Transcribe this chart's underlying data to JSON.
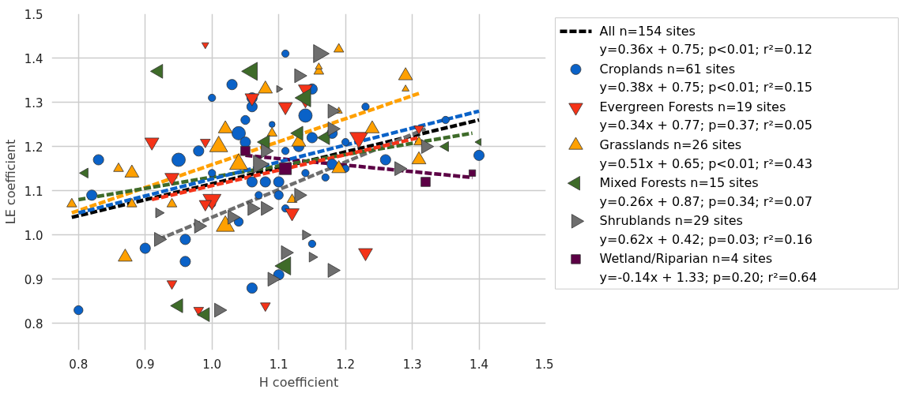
{
  "chart_data": {
    "type": "bubble",
    "xlabel": "H coefficient",
    "ylabel": "LE coefficient",
    "xlim": [
      0.76,
      1.5
    ],
    "ylim": [
      0.74,
      1.5
    ],
    "xticks": [
      0.8,
      0.9,
      {
        "value": 1.0,
        "label": "1.0"
      },
      1.1,
      1.2,
      1.3,
      1.4,
      1.5
    ],
    "yticks": [
      0.8,
      0.9,
      {
        "value": 1.0,
        "label": "1.0"
      },
      1.1,
      1.2,
      1.3,
      1.4,
      1.5
    ],
    "grid": true,
    "legend": "right",
    "series": [
      {
        "type": "line",
        "name": "All n=154 sites\ny=0.36x + 0.75; p<0.01; r²=0.12",
        "color": "#000000",
        "line_style": "dashed",
        "x": [
          0.79,
          1.4
        ],
        "values": [
          1.04,
          1.26
        ]
      },
      {
        "type": "line",
        "color": "#ffa000",
        "line_style": "dashed",
        "x": [
          0.79,
          1.31
        ],
        "values": [
          1.05,
          1.32
        ]
      },
      {
        "type": "line",
        "color": "#6e6e6e",
        "line_style": "dashed",
        "x": [
          0.92,
          1.32
        ],
        "values": [
          0.99,
          1.24
        ]
      },
      {
        "type": "line",
        "color": "#5c0045",
        "line_style": "dashed",
        "x": [
          1.05,
          1.39
        ],
        "values": [
          1.18,
          1.13
        ]
      },
      {
        "type": "line",
        "color": "#3e6b29",
        "line_style": "dashed",
        "x": [
          0.8,
          1.39
        ],
        "values": [
          1.08,
          1.23
        ]
      },
      {
        "type": "line",
        "color": "#f53318",
        "line_style": "dashed",
        "x": [
          0.91,
          1.31
        ],
        "values": [
          1.08,
          1.22
        ]
      },
      {
        "type": "line",
        "color": "#0a62c8",
        "line_style": "dashed",
        "x": [
          0.8,
          1.4
        ],
        "values": [
          1.05,
          1.28
        ]
      },
      {
        "name": "Croplands n=61 sites\ny=0.38x + 0.75; p<0.01; r²=0.15",
        "color": "#0a62c8",
        "marker": "circle",
        "x": [
          0.8,
          0.83,
          0.82,
          0.9,
          0.96,
          0.96,
          0.95,
          0.98,
          1.0,
          1.0,
          1.0,
          1.03,
          1.06,
          1.06,
          1.05,
          1.09,
          1.04,
          1.05,
          1.11,
          1.15,
          1.14,
          1.18,
          1.15,
          1.13,
          1.11,
          1.2,
          1.23,
          1.26,
          1.35,
          1.4,
          1.06,
          1.08,
          1.1,
          1.07,
          1.1,
          1.11,
          1.04,
          1.15,
          1.1,
          1.06,
          1.17,
          1.14,
          1.18,
          1.2
        ],
        "values": [
          0.83,
          1.17,
          1.09,
          0.97,
          0.99,
          0.94,
          1.17,
          1.19,
          1.31,
          1.14,
          1.07,
          1.34,
          1.29,
          1.31,
          1.26,
          1.25,
          1.23,
          1.21,
          1.41,
          1.33,
          1.27,
          1.23,
          1.22,
          1.2,
          1.19,
          1.21,
          1.29,
          1.17,
          1.26,
          1.18,
          1.12,
          1.12,
          1.12,
          1.09,
          1.09,
          1.06,
          1.03,
          0.98,
          0.91,
          0.88,
          1.13,
          1.14,
          1.16,
          1.15
        ],
        "sizes": [
          0.45,
          0.6,
          0.6,
          0.6,
          0.6,
          0.6,
          1,
          0.6,
          0.3,
          0.3,
          0.3,
          0.6,
          0.6,
          0.6,
          0.45,
          0.2,
          1,
          0.6,
          0.3,
          0.6,
          1,
          0.6,
          0.6,
          0.6,
          0.3,
          0.3,
          0.3,
          0.6,
          0.3,
          0.6,
          0.6,
          0.6,
          0.6,
          0.3,
          0.45,
          0.3,
          0.45,
          0.3,
          0.6,
          0.6,
          0.3,
          0.3,
          0.6,
          0.3
        ]
      },
      {
        "name": "Evergreen Forests n=19 sites\ny=0.34x + 0.77; p=0.37; r²=0.05",
        "color": "#f53318",
        "marker": "triangle",
        "x": [
          0.99,
          0.91,
          0.99,
          0.94,
          1.0,
          0.99,
          0.94,
          0.98,
          1.06,
          1.11,
          1.14,
          1.14,
          1.22,
          1.12,
          1.08,
          1.23,
          1.31
        ],
        "values": [
          1.43,
          1.21,
          1.21,
          1.13,
          1.08,
          1.07,
          0.89,
          0.83,
          1.31,
          1.29,
          1.33,
          1.3,
          1.22,
          1.05,
          0.84,
          0.96,
          1.24
        ],
        "sizes": [
          0.15,
          0.6,
          0.3,
          0.6,
          1,
          0.45,
          0.3,
          0.3,
          0.6,
          0.6,
          0.6,
          0.3,
          1,
          0.6,
          0.3,
          0.6,
          0.3
        ]
      },
      {
        "name": "Grasslands n=26 sites\ny=0.51x + 0.65; p<0.01; r²=0.43",
        "color": "#ffa000",
        "marker": "triangle",
        "x": [
          0.86,
          0.88,
          0.79,
          0.88,
          0.94,
          0.87,
          1.08,
          1.02,
          1.09,
          1.01,
          1.13,
          1.16,
          1.16,
          1.19,
          1.19,
          1.24,
          1.04,
          1.19,
          1.29,
          1.29,
          1.31,
          1.31,
          1.02,
          1.12
        ],
        "values": [
          1.15,
          1.14,
          1.07,
          1.07,
          1.07,
          0.95,
          1.33,
          1.24,
          1.23,
          1.2,
          1.21,
          1.37,
          1.38,
          1.42,
          1.28,
          1.24,
          1.16,
          1.15,
          1.36,
          1.33,
          1.17,
          1.21,
          1.02,
          1.08
        ],
        "sizes": [
          0.3,
          0.6,
          0.3,
          0.3,
          0.3,
          0.6,
          0.6,
          0.6,
          0.3,
          1,
          0.6,
          0.3,
          0.15,
          0.3,
          0.15,
          0.6,
          1,
          0.6,
          0.6,
          0.15,
          0.6,
          0.3,
          1,
          0.3
        ]
      },
      {
        "name": "Mixed Forests n=15 sites\ny=0.26x + 0.87; p=0.34; r²=0.07",
        "color": "#3e6b29",
        "marker": "triangle",
        "x": [
          0.92,
          0.81,
          0.95,
          0.99,
          1.06,
          1.14,
          1.13,
          1.08,
          1.17,
          1.35,
          1.4,
          1.11
        ],
        "values": [
          1.37,
          1.14,
          0.84,
          0.82,
          1.37,
          1.31,
          1.23,
          1.21,
          1.22,
          1.2,
          1.21,
          0.93
        ],
        "sizes": [
          0.6,
          0.3,
          0.6,
          0.6,
          1,
          1,
          0.6,
          0.6,
          0.6,
          0.3,
          0.15,
          1
        ]
      },
      {
        "name": "Shrublands n=29 sites\ny=0.62x + 0.42; p=0.03; r²=0.16",
        "color": "#6e6e6e",
        "marker": "triangle",
        "x": [
          0.92,
          0.92,
          0.98,
          1.01,
          1.16,
          1.13,
          1.1,
          1.18,
          1.18,
          1.08,
          1.07,
          1.32,
          1.28,
          1.13,
          1.06,
          1.08,
          1.03,
          1.14,
          1.11,
          1.15,
          1.18,
          1.09
        ],
        "values": [
          1.05,
          0.99,
          1.02,
          0.83,
          1.41,
          1.36,
          1.33,
          1.28,
          1.24,
          1.19,
          1.16,
          1.2,
          1.15,
          1.09,
          1.06,
          1.06,
          1.04,
          1.0,
          0.96,
          0.95,
          0.92,
          0.9
        ],
        "sizes": [
          0.3,
          0.6,
          0.6,
          0.6,
          1,
          0.6,
          0.15,
          0.6,
          0.6,
          0.6,
          1,
          0.6,
          0.6,
          0.6,
          0.6,
          0.6,
          0.6,
          0.3,
          0.6,
          0.3,
          0.6,
          0.6
        ]
      },
      {
        "name": "Wetland/Riparian n=4 sites\ny=-0.14x + 1.33; p=0.20; r²=0.64",
        "color": "#5c0045",
        "marker": "square",
        "x": [
          1.05,
          1.11,
          1.32,
          1.39
        ],
        "values": [
          1.19,
          1.15,
          1.12,
          1.14
        ],
        "sizes": [
          0.6,
          1,
          0.6,
          0.3
        ]
      }
    ]
  }
}
